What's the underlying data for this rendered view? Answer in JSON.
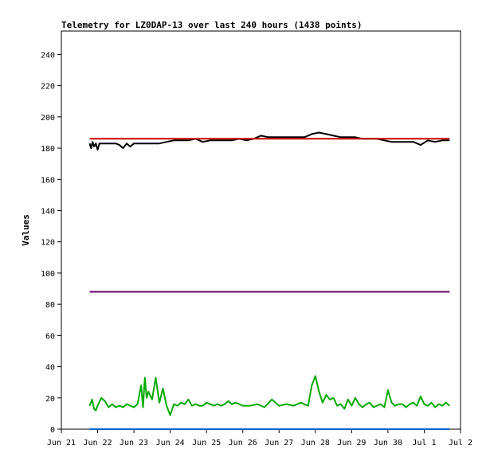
{
  "chart_data": {
    "type": "line",
    "title": "Telemetry for LZ0DAP-13 over last 240 hours (1438 points)",
    "xlabel": "",
    "ylabel": "Values",
    "xlim": [
      0,
      11
    ],
    "ylim": [
      0,
      255
    ],
    "x_tick_labels": [
      "Jun 21",
      "Jun 22",
      "Jun 23",
      "Jun 24",
      "Jun 25",
      "Jun 26",
      "Jun 27",
      "Jun 28",
      "Jun 29",
      "Jun 30",
      "Jul 1",
      "Jul 2"
    ],
    "y_ticks": [
      0,
      20,
      40,
      60,
      80,
      100,
      120,
      140,
      160,
      180,
      200,
      220,
      240
    ],
    "grid": false,
    "legend": "none",
    "series": [
      {
        "color": "#000000",
        "x": [
          0.78,
          0.82,
          0.86,
          0.9,
          0.95,
          1.0,
          1.05,
          1.1,
          1.2,
          1.3,
          1.4,
          1.5,
          1.6,
          1.7,
          1.8,
          1.9,
          2.0,
          2.1,
          2.2,
          2.3,
          2.5,
          2.7,
          2.9,
          3.1,
          3.3,
          3.5,
          3.7,
          3.9,
          4.1,
          4.3,
          4.5,
          4.7,
          4.9,
          5.1,
          5.3,
          5.5,
          5.7,
          5.9,
          6.1,
          6.3,
          6.5,
          6.7,
          6.9,
          7.1,
          7.3,
          7.5,
          7.7,
          7.9,
          8.1,
          8.3,
          8.5,
          8.7,
          8.9,
          9.1,
          9.3,
          9.5,
          9.7,
          9.9,
          10.1,
          10.3,
          10.5,
          10.7
        ],
        "y": [
          183,
          180,
          184,
          181,
          183,
          179,
          183,
          183,
          183,
          183,
          183,
          183,
          182,
          180,
          183,
          181,
          183,
          183,
          183,
          183,
          183,
          183,
          184,
          185,
          185,
          185,
          186,
          184,
          185,
          185,
          185,
          185,
          186,
          185,
          186,
          188,
          187,
          187,
          187,
          187,
          187,
          187,
          189,
          190,
          189,
          188,
          187,
          187,
          187,
          186,
          186,
          186,
          185,
          184,
          184,
          184,
          184,
          182,
          185,
          184,
          185,
          185
        ],
        "values_note": ""
      },
      {
        "color": "#cc0000",
        "x": [
          0.78,
          10.7
        ],
        "y": [
          186,
          186
        ]
      },
      {
        "color": "#660066",
        "x": [
          0.78,
          10.7
        ],
        "y": [
          88,
          88
        ]
      },
      {
        "color": "#00aa00",
        "x": [
          0.78,
          0.85,
          0.9,
          0.95,
          1.0,
          1.1,
          1.2,
          1.3,
          1.4,
          1.5,
          1.6,
          1.7,
          1.8,
          1.9,
          2.0,
          2.1,
          2.2,
          2.25,
          2.3,
          2.35,
          2.4,
          2.5,
          2.6,
          2.7,
          2.8,
          2.9,
          3.0,
          3.1,
          3.2,
          3.3,
          3.4,
          3.5,
          3.6,
          3.7,
          3.8,
          3.9,
          4.0,
          4.1,
          4.2,
          4.3,
          4.4,
          4.5,
          4.6,
          4.7,
          4.8,
          4.9,
          5.0,
          5.2,
          5.4,
          5.6,
          5.8,
          6.0,
          6.2,
          6.4,
          6.6,
          6.8,
          6.9,
          7.0,
          7.1,
          7.2,
          7.3,
          7.4,
          7.5,
          7.6,
          7.7,
          7.8,
          7.9,
          8.0,
          8.1,
          8.2,
          8.3,
          8.4,
          8.5,
          8.6,
          8.7,
          8.8,
          8.9,
          9.0,
          9.1,
          9.2,
          9.3,
          9.4,
          9.5,
          9.6,
          9.7,
          9.8,
          9.9,
          10.0,
          10.1,
          10.2,
          10.3,
          10.4,
          10.5,
          10.6,
          10.7
        ],
        "y": [
          15,
          19,
          13,
          12,
          15,
          20,
          18,
          14,
          16,
          14,
          15,
          14,
          16,
          15,
          14,
          16,
          28,
          14,
          33,
          20,
          24,
          19,
          33,
          17,
          26,
          15,
          9,
          16,
          15,
          17,
          16,
          19,
          15,
          16,
          15,
          15,
          17,
          16,
          15,
          16,
          15,
          16,
          18,
          16,
          17,
          16,
          15,
          15,
          16,
          14,
          19,
          15,
          16,
          15,
          17,
          15,
          28,
          34,
          24,
          17,
          22,
          19,
          20,
          15,
          16,
          13,
          19,
          15,
          20,
          16,
          14,
          16,
          17,
          14,
          15,
          16,
          14,
          25,
          17,
          15,
          16,
          16,
          14,
          16,
          17,
          15,
          21,
          16,
          15,
          17,
          14,
          16,
          15,
          17,
          15
        ]
      },
      {
        "color": "#0066cc",
        "x": [
          0.78,
          10.7
        ],
        "y": [
          0,
          0
        ]
      }
    ]
  }
}
